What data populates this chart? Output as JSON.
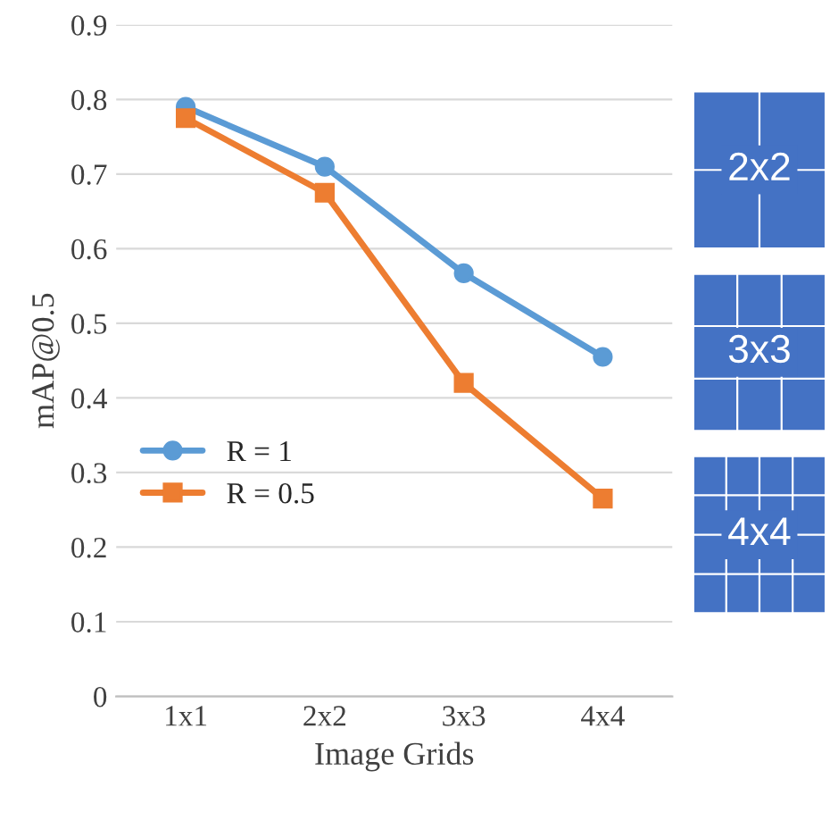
{
  "chart_data": {
    "type": "line",
    "xlabel": "Image Grids",
    "ylabel": "mAP@0.5",
    "categories": [
      "1x1",
      "2x2",
      "3x3",
      "4x4"
    ],
    "series": [
      {
        "name": "R = 1",
        "color": "#5b9bd5",
        "marker": "circle",
        "values": [
          0.79,
          0.71,
          0.567,
          0.455
        ]
      },
      {
        "name": "R = 0.5",
        "color": "#ed7d31",
        "marker": "square",
        "values": [
          0.775,
          0.675,
          0.42,
          0.265
        ]
      }
    ],
    "ylim": [
      0,
      0.9
    ],
    "yticks": [
      0,
      0.1,
      0.2,
      0.3,
      0.4,
      0.5,
      0.6,
      0.7,
      0.8,
      0.9
    ],
    "grid": "y",
    "legend": "center left",
    "line_style": "solid",
    "annotations": [
      "2x2",
      "3x3",
      "4x4"
    ]
  }
}
